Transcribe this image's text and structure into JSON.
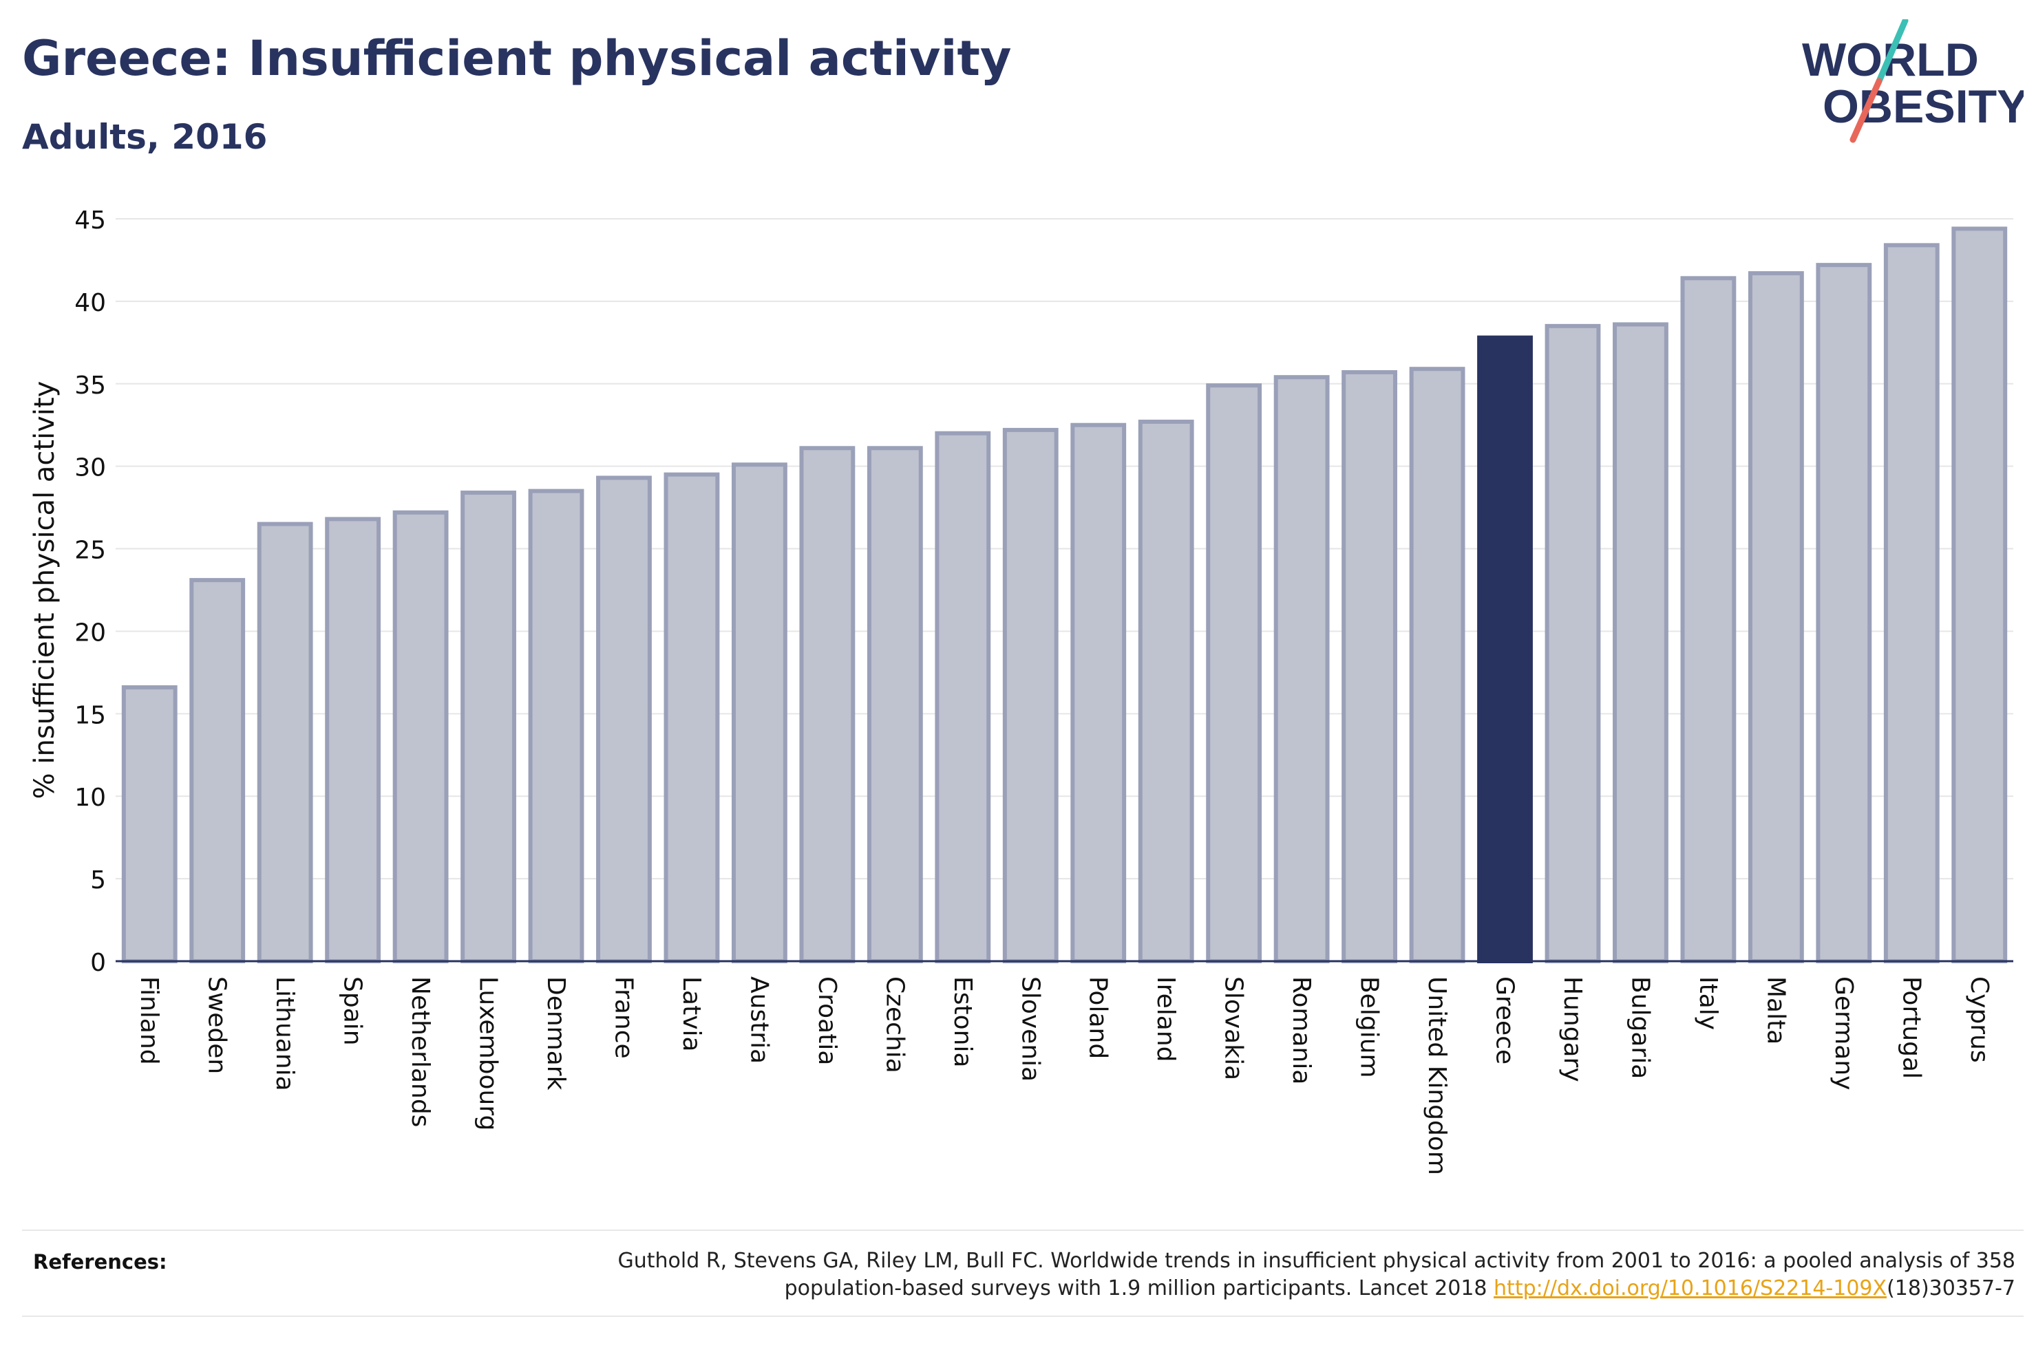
{
  "header": {
    "title": "Greece: Insufficient physical activity",
    "subtitle": "Adults, 2016"
  },
  "logo": {
    "line1": "WORLD",
    "line2": "OBESITY",
    "slash_colors": [
      "#3cbfb4",
      "#e8675a"
    ]
  },
  "chart_data": {
    "type": "bar",
    "title": "Greece: Insufficient physical activity",
    "subtitle": "Adults, 2016",
    "xlabel": "",
    "ylabel": "% insufficient physical activity",
    "ylim": [
      0,
      45
    ],
    "yticks": [
      "0",
      "5",
      "10",
      "15",
      "20",
      "25",
      "30",
      "35",
      "40",
      "45"
    ],
    "grid": true,
    "highlight": "Greece",
    "colors": {
      "bar": "#bfc2cf",
      "bar_border": "#9aa0b8",
      "highlight": "#283360",
      "grid": "#e6e6e6",
      "axis": "#283360"
    },
    "categories": [
      "Finland",
      "Sweden",
      "Lithuania",
      "Spain",
      "Netherlands",
      "Luxembourg",
      "Denmark",
      "France",
      "Latvia",
      "Austria",
      "Croatia",
      "Czechia",
      "Estonia",
      "Slovenia",
      "Poland",
      "Ireland",
      "Slovakia",
      "Romania",
      "Belgium",
      "United Kingdom",
      "Greece",
      "Hungary",
      "Bulgaria",
      "Italy",
      "Malta",
      "Germany",
      "Portugal",
      "Cyprus"
    ],
    "values": [
      16.6,
      23.1,
      26.5,
      26.8,
      27.2,
      28.4,
      28.5,
      29.3,
      29.5,
      30.1,
      31.1,
      31.1,
      32.0,
      32.2,
      32.5,
      32.7,
      34.9,
      35.4,
      35.7,
      35.9,
      37.8,
      38.5,
      38.6,
      41.4,
      41.7,
      42.2,
      43.4,
      44.4
    ]
  },
  "references": {
    "label": "References:",
    "line1": "Guthold R, Stevens GA, Riley LM, Bull FC. Worldwide trends in insufficient physical activity from 2001 to 2016: a pooled analysis of 358",
    "line2_prefix": "population-based surveys with 1.9 million participants. Lancet 2018 ",
    "link": "http://dx.doi.org/10.1016/S2214-109X",
    "line2_suffix": "(18)30357-7"
  }
}
